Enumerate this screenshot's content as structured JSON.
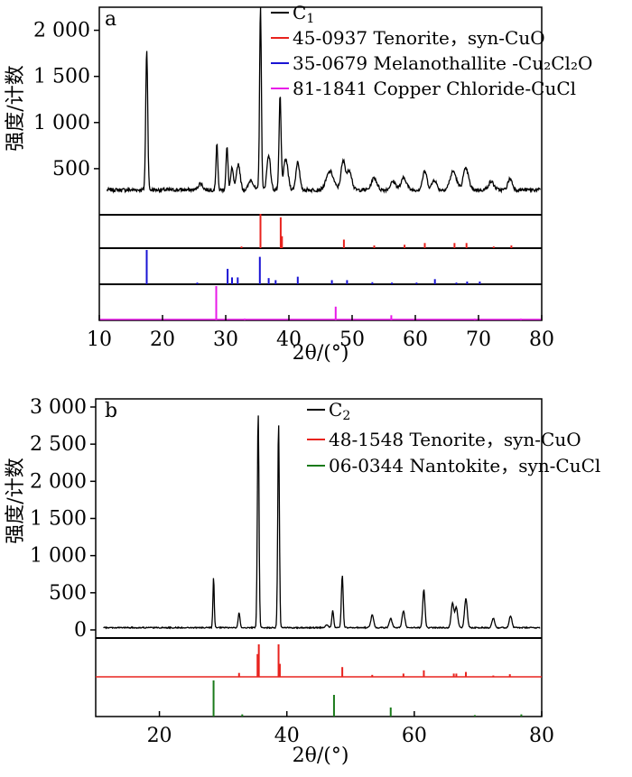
{
  "chart_data": [
    {
      "panel_label": "a",
      "type": "line",
      "xlabel": "2θ/(°)",
      "ylabel": "强度/计数",
      "xlim": [
        10,
        80
      ],
      "ylim": [
        0,
        2250
      ],
      "x_ticks": [
        10,
        20,
        30,
        40,
        50,
        60,
        70,
        80
      ],
      "y_ticks": [
        {
          "value": 500,
          "label": "500"
        },
        {
          "value": 1000,
          "label": "1 000"
        },
        {
          "value": 1500,
          "label": "1 500"
        },
        {
          "value": 2000,
          "label": "2 000"
        }
      ],
      "pattern": {
        "name": "C1",
        "color": "#000000",
        "baseline": 270,
        "noise": 20,
        "peaks": [
          [
            17.5,
            1800,
            0.22
          ],
          [
            26.0,
            340,
            0.5
          ],
          [
            28.6,
            780,
            0.2
          ],
          [
            30.2,
            730,
            0.22
          ],
          [
            31.0,
            500,
            0.3
          ],
          [
            32.0,
            550,
            0.4
          ],
          [
            34.0,
            380,
            0.5
          ],
          [
            35.5,
            2250,
            0.2
          ],
          [
            36.8,
            650,
            0.4
          ],
          [
            38.6,
            1280,
            0.22
          ],
          [
            39.5,
            600,
            0.5
          ],
          [
            41.4,
            580,
            0.4
          ],
          [
            46.5,
            470,
            0.8
          ],
          [
            48.6,
            580,
            0.5
          ],
          [
            49.6,
            480,
            0.5
          ],
          [
            53.5,
            400,
            0.6
          ],
          [
            56.5,
            360,
            0.6
          ],
          [
            58.2,
            400,
            0.6
          ],
          [
            61.5,
            470,
            0.5
          ],
          [
            63.0,
            380,
            0.5
          ],
          [
            66.0,
            470,
            0.7
          ],
          [
            68.0,
            500,
            0.6
          ],
          [
            72.0,
            360,
            0.6
          ],
          [
            75.0,
            390,
            0.5
          ]
        ]
      },
      "references": [
        {
          "name": "45-0937 Tenorite，syn-CuO",
          "color": "#e8231e",
          "sticks": [
            [
              32.5,
              0.05
            ],
            [
              35.5,
              1.0
            ],
            [
              38.7,
              0.9
            ],
            [
              38.9,
              0.35
            ],
            [
              48.7,
              0.25
            ],
            [
              53.5,
              0.08
            ],
            [
              58.3,
              0.1
            ],
            [
              61.5,
              0.15
            ],
            [
              66.2,
              0.15
            ],
            [
              68.1,
              0.15
            ],
            [
              72.4,
              0.05
            ],
            [
              75.2,
              0.08
            ]
          ]
        },
        {
          "name": "35-0679  Melanothallite -Cu₂Cl₂O",
          "color": "#1a14d4",
          "sticks": [
            [
              17.5,
              1.0
            ],
            [
              25.5,
              0.05
            ],
            [
              30.3,
              0.45
            ],
            [
              31.0,
              0.2
            ],
            [
              31.9,
              0.2
            ],
            [
              35.4,
              0.8
            ],
            [
              36.8,
              0.18
            ],
            [
              37.9,
              0.12
            ],
            [
              41.4,
              0.22
            ],
            [
              46.8,
              0.12
            ],
            [
              49.2,
              0.12
            ],
            [
              53.2,
              0.06
            ],
            [
              56.3,
              0.05
            ],
            [
              60.2,
              0.05
            ],
            [
              63.1,
              0.15
            ],
            [
              66.5,
              0.05
            ],
            [
              68.2,
              0.08
            ],
            [
              70.2,
              0.08
            ]
          ]
        },
        {
          "name": "81-1841  Copper Chloride-CuCl",
          "color": "#e81ae8",
          "sticks": [
            [
              28.5,
              1.0
            ],
            [
              33.0,
              0.05
            ],
            [
              47.4,
              0.4
            ],
            [
              56.2,
              0.15
            ],
            [
              69.4,
              0.05
            ],
            [
              76.7,
              0.05
            ]
          ]
        }
      ],
      "legend": [
        "C1",
        "45-0937 Tenorite，syn-CuO",
        "35-0679  Melanothallite -Cu₂Cl₂O",
        "81-1841  Copper Chloride-CuCl"
      ]
    },
    {
      "panel_label": "b",
      "type": "line",
      "xlabel": "2θ/(°)",
      "ylabel": "强度/计数",
      "xlim": [
        10,
        80
      ],
      "ylim": [
        0,
        3000
      ],
      "x_ticks": [
        20,
        40,
        60,
        80
      ],
      "y_ticks": [
        {
          "value": 0,
          "label": "0"
        },
        {
          "value": 500,
          "label": "500"
        },
        {
          "value": 1000,
          "label": "1 000"
        },
        {
          "value": 1500,
          "label": "1 500"
        },
        {
          "value": 2000,
          "label": "2 000"
        },
        {
          "value": 2500,
          "label": "2 500"
        },
        {
          "value": 3000,
          "label": "3 000"
        }
      ],
      "pattern": {
        "name": "C2",
        "color": "#000000",
        "baseline": 30,
        "noise": 8,
        "peaks": [
          [
            28.5,
            700,
            0.15
          ],
          [
            32.5,
            230,
            0.2
          ],
          [
            35.5,
            2920,
            0.18
          ],
          [
            38.7,
            2780,
            0.18
          ],
          [
            46.3,
            70,
            0.3
          ],
          [
            47.2,
            260,
            0.2
          ],
          [
            48.7,
            740,
            0.2
          ],
          [
            53.4,
            200,
            0.3
          ],
          [
            56.3,
            150,
            0.3
          ],
          [
            58.3,
            250,
            0.3
          ],
          [
            61.5,
            540,
            0.25
          ],
          [
            66.0,
            360,
            0.3
          ],
          [
            66.6,
            300,
            0.3
          ],
          [
            68.1,
            420,
            0.3
          ],
          [
            72.4,
            160,
            0.3
          ],
          [
            75.1,
            190,
            0.3
          ]
        ]
      },
      "references": [
        {
          "name": "48-1548 Tenorite，syn-CuO",
          "color": "#e8231e",
          "sticks": [
            [
              32.5,
              0.12
            ],
            [
              35.4,
              0.7
            ],
            [
              35.6,
              1.0
            ],
            [
              38.7,
              1.0
            ],
            [
              38.9,
              0.4
            ],
            [
              48.7,
              0.3
            ],
            [
              53.4,
              0.06
            ],
            [
              58.3,
              0.1
            ],
            [
              61.5,
              0.2
            ],
            [
              66.2,
              0.1
            ],
            [
              66.6,
              0.1
            ],
            [
              68.1,
              0.15
            ],
            [
              72.4,
              0.04
            ],
            [
              75.0,
              0.08
            ]
          ]
        },
        {
          "name": "06-0344 Nantokite，syn-CuCl",
          "color": "#1a7a1a",
          "sticks": [
            [
              28.5,
              1.0
            ],
            [
              33.0,
              0.06
            ],
            [
              47.4,
              0.6
            ],
            [
              56.3,
              0.25
            ],
            [
              69.5,
              0.04
            ],
            [
              76.8,
              0.06
            ]
          ]
        }
      ],
      "legend": [
        "C2",
        "48-1548 Tenorite，syn-CuO",
        "06-0344 Nantokite，syn-CuCl"
      ]
    }
  ]
}
